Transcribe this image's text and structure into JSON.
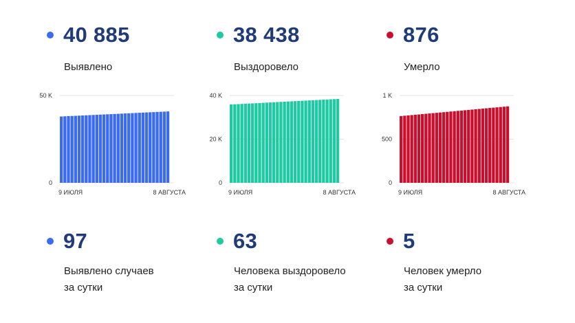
{
  "totals": [
    {
      "value": "40 885",
      "label": "Выявлено",
      "color": "#3b6cf0"
    },
    {
      "value": "38 438",
      "label": "Выздоровело",
      "color": "#1fc9a4"
    },
    {
      "value": "876",
      "label": "Умерло",
      "color": "#c8102e"
    }
  ],
  "daily": [
    {
      "value": "97",
      "line1": "Выявлено случаев",
      "line2": "за сутки",
      "color": "#3b6cf0"
    },
    {
      "value": "63",
      "line1": "Человека выздоровело",
      "line2": "за сутки",
      "color": "#1fc9a4"
    },
    {
      "value": "5",
      "line1": "Человек умерло",
      "line2": "за сутки",
      "color": "#c8102e"
    }
  ],
  "chart_data": [
    {
      "type": "bar",
      "series": [
        {
          "start": 38000,
          "end": 40885,
          "count": 31
        }
      ],
      "ylim": [
        0,
        50000
      ],
      "yticks": [
        {
          "value": 0,
          "label": "0"
        },
        {
          "value": 50000,
          "label": "50 K"
        }
      ],
      "xlabels": [
        "9 ИЮЛЯ",
        "8 АВГУСТА"
      ],
      "color": "#3b6cf0"
    },
    {
      "type": "bar",
      "series": [
        {
          "start": 35900,
          "end": 38438,
          "count": 31
        }
      ],
      "ylim": [
        0,
        40000
      ],
      "yticks": [
        {
          "value": 0,
          "label": "0"
        },
        {
          "value": 20000,
          "label": "20 K"
        },
        {
          "value": 40000,
          "label": "40 K"
        }
      ],
      "xlabels": [
        "9 ИЮЛЯ",
        "8 АВГУСТА"
      ],
      "color": "#1fc9a4"
    },
    {
      "type": "bar",
      "series": [
        {
          "start": 765,
          "end": 876,
          "count": 31
        }
      ],
      "ylim": [
        0,
        1000
      ],
      "yticks": [
        {
          "value": 0,
          "label": "0"
        },
        {
          "value": 500,
          "label": "500"
        },
        {
          "value": 1000,
          "label": "1 K"
        }
      ],
      "xlabels": [
        "9 ИЮЛЯ",
        "8 АВГУСТА"
      ],
      "color": "#c8102e"
    }
  ]
}
